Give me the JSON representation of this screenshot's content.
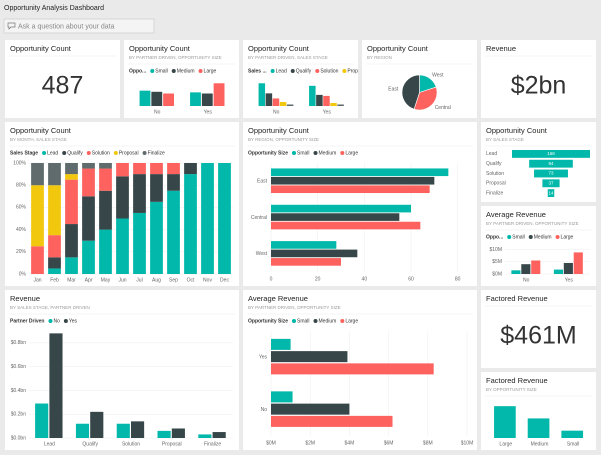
{
  "title": "Opportunity Analysis Dashboard",
  "qa_placeholder": "Ask a question about your data",
  "chart_data": [
    {
      "type": "card",
      "title": "Opportunity Count",
      "value": 487
    },
    {
      "type": "column",
      "title": "Opportunity Count",
      "subtitle": "BY PARTNER DRIVEN, OPPORTUNITY SIZE",
      "legend_title": "Oppo...",
      "categories": [
        "No",
        "Yes"
      ],
      "series": [
        {
          "name": "Small",
          "color": "#01b8aa",
          "values": [
            27,
            24
          ]
        },
        {
          "name": "Medium",
          "color": "#374649",
          "values": [
            25,
            22
          ]
        },
        {
          "name": "Large",
          "color": "#fd625e",
          "values": [
            22,
            40
          ]
        }
      ]
    },
    {
      "type": "column",
      "title": "Opportunity Count",
      "subtitle": "BY PARTNER DRIVEN, SALES STAGE",
      "legend_title": "Sales ...",
      "categories": [
        "No",
        "Yes"
      ],
      "series": [
        {
          "name": "Lead",
          "color": "#01b8aa",
          "values": [
            45,
            40
          ]
        },
        {
          "name": "Qualify",
          "color": "#374649",
          "values": [
            25,
            22
          ]
        },
        {
          "name": "Solution",
          "color": "#fd625e",
          "values": [
            15,
            20
          ]
        },
        {
          "name": "Proposal",
          "color": "#f2c80f",
          "values": [
            8,
            6
          ]
        },
        {
          "name": "Finalize",
          "color": "#5f6b6d",
          "values": [
            3,
            3
          ]
        }
      ]
    },
    {
      "type": "pie",
      "title": "Opportunity Count",
      "subtitle": "BY REGION",
      "categories": [
        "West",
        "Central",
        "East"
      ],
      "values": [
        20,
        35,
        45
      ],
      "colors": [
        "#01b8aa",
        "#fd625e",
        "#374649"
      ]
    },
    {
      "type": "card",
      "title": "Revenue",
      "value": "$2bn"
    },
    {
      "type": "column",
      "title": "Opportunity Count",
      "subtitle": "BY MONTH, SALES STAGE",
      "legend_title": "Sales Stage",
      "stacked": true,
      "grid": true,
      "categories": [
        "Jan",
        "Feb",
        "Mar",
        "Apr",
        "May",
        "Jun",
        "Jul",
        "Aug",
        "Sep",
        "Oct",
        "Nov",
        "Dec"
      ],
      "ylim": [
        0,
        100
      ],
      "yticks": [
        {
          "value": 0,
          "label": "0%"
        },
        {
          "value": 20,
          "label": "20%"
        },
        {
          "value": 40,
          "label": "40%"
        },
        {
          "value": 60,
          "label": "60%"
        },
        {
          "value": 80,
          "label": "80%"
        },
        {
          "value": 100,
          "label": "100%"
        }
      ],
      "series": [
        {
          "name": "Lead",
          "color": "#01b8aa",
          "values": [
            0,
            5,
            15,
            30,
            40,
            50,
            55,
            65,
            75,
            90,
            100,
            100
          ]
        },
        {
          "name": "Qualify",
          "color": "#374649",
          "values": [
            0,
            10,
            30,
            40,
            35,
            38,
            35,
            25,
            15,
            10,
            0,
            0
          ]
        },
        {
          "name": "Solution",
          "color": "#fd625e",
          "values": [
            25,
            20,
            40,
            25,
            20,
            12,
            10,
            10,
            10,
            0,
            0,
            0
          ]
        },
        {
          "name": "Proposal",
          "color": "#f2c80f",
          "values": [
            55,
            45,
            5,
            0,
            0,
            0,
            0,
            0,
            0,
            0,
            0,
            0
          ]
        },
        {
          "name": "Finalize",
          "color": "#5f6b6d",
          "values": [
            20,
            20,
            10,
            5,
            5,
            0,
            0,
            0,
            0,
            0,
            0,
            0
          ]
        }
      ]
    },
    {
      "type": "bar",
      "title": "Opportunity Count",
      "subtitle": "BY REGION, OPPORTUNITY SIZE",
      "legend_title": "Opportunity Size",
      "grid": true,
      "categories": [
        "East",
        "Central",
        "West"
      ],
      "xlim": [
        0,
        84
      ],
      "xticks": [
        0,
        20,
        40,
        60,
        80
      ],
      "series": [
        {
          "name": "Small",
          "color": "#01b8aa",
          "values": [
            76,
            60,
            28
          ]
        },
        {
          "name": "Medium",
          "color": "#374649",
          "values": [
            70,
            55,
            37
          ]
        },
        {
          "name": "Large",
          "color": "#fd625e",
          "values": [
            68,
            64,
            30
          ]
        }
      ]
    },
    {
      "type": "funnel",
      "title": "Opportunity Count",
      "subtitle": "BY SALES STAGE",
      "categories": [
        "Lead",
        "Qualify",
        "Solution",
        "Proposal",
        "Finalize"
      ],
      "values": [
        168,
        94,
        73,
        37,
        14
      ],
      "color": "#01b8aa"
    },
    {
      "type": "column",
      "title": "Average Revenue",
      "subtitle": "BY PARTNER DRIVEN, OPPORTUNITY SIZE",
      "legend_title": "Oppo...",
      "grid": true,
      "categories": [
        "No",
        "Yes"
      ],
      "ylim": [
        0,
        11
      ],
      "yticks": [
        {
          "value": 0,
          "label": "$0M"
        },
        {
          "value": 5,
          "label": "$5M"
        },
        {
          "value": 10,
          "label": "$10M"
        }
      ],
      "series": [
        {
          "name": "Small",
          "color": "#01b8aa",
          "values": [
            1.5,
            1.8
          ]
        },
        {
          "name": "Medium",
          "color": "#374649",
          "values": [
            4.0,
            4.5
          ]
        },
        {
          "name": "Large",
          "color": "#fd625e",
          "values": [
            5.5,
            8.8
          ]
        }
      ]
    },
    {
      "type": "column",
      "title": "Revenue",
      "subtitle": "BY SALES STAGE, PARTNER DRIVEN",
      "legend_title": "Partner Driven",
      "grid": true,
      "categories": [
        "Lead",
        "Qualify",
        "Solution",
        "Proposal",
        "Finalize"
      ],
      "ylim": [
        0,
        0.9
      ],
      "yticks": [
        {
          "value": 0,
          "label": "$0.0bn"
        },
        {
          "value": 0.2,
          "label": "$0.2bn"
        },
        {
          "value": 0.4,
          "label": "$0.4bn"
        },
        {
          "value": 0.6,
          "label": "$0.6bn"
        },
        {
          "value": 0.8,
          "label": "$0.8bn"
        }
      ],
      "series": [
        {
          "name": "No",
          "color": "#01b8aa",
          "values": [
            0.29,
            0.12,
            0.12,
            0.06,
            0.03
          ]
        },
        {
          "name": "Yes",
          "color": "#374649",
          "values": [
            0.88,
            0.22,
            0.14,
            0.08,
            0.05
          ]
        }
      ]
    },
    {
      "type": "bar",
      "title": "Average Revenue",
      "subtitle": "BY PARTNER DRIVEN, OPPORTUNITY SIZE",
      "legend_title": "Opportunity Size",
      "grid": true,
      "categories": [
        "Yes",
        "No"
      ],
      "xlim": [
        0,
        10
      ],
      "xticks": [
        {
          "value": 0,
          "label": "$0M"
        },
        {
          "value": 2,
          "label": "$2M"
        },
        {
          "value": 4,
          "label": "$4M"
        },
        {
          "value": 6,
          "label": "$6M"
        },
        {
          "value": 8,
          "label": "$8M"
        },
        {
          "value": 10,
          "label": "$10M"
        }
      ],
      "series": [
        {
          "name": "Small",
          "color": "#01b8aa",
          "values": [
            1.0,
            1.1
          ]
        },
        {
          "name": "Medium",
          "color": "#374649",
          "values": [
            3.9,
            4.0
          ]
        },
        {
          "name": "Large",
          "color": "#fd625e",
          "values": [
            8.3,
            6.2
          ]
        }
      ]
    },
    {
      "type": "card",
      "title": "Factored Revenue",
      "value": "$461M"
    },
    {
      "type": "column",
      "title": "Factored Revenue",
      "subtitle": "BY OPPORTUNITY SIZE",
      "categories": [
        "Large",
        "Medium",
        "Small"
      ],
      "values": [
        260,
        160,
        60
      ],
      "color": "#01b8aa"
    }
  ]
}
